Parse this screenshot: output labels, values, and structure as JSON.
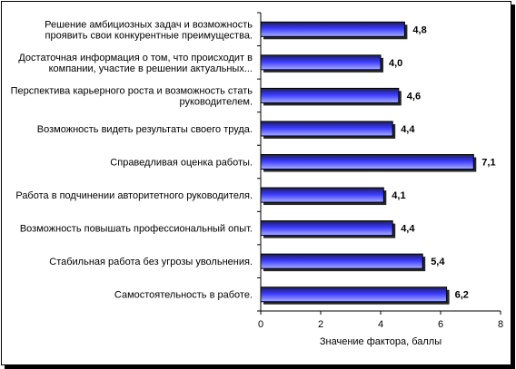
{
  "chart_data": {
    "type": "bar",
    "orientation": "horizontal",
    "categories": [
      [
        "Решение амбициозных задач и возможность",
        "проявить свои конкурентные преимущества."
      ],
      [
        "Достаточная информация о том, что происходит в",
        "компании, участие в решении актуальных..."
      ],
      [
        "Перспектива карьерного роста и возможность стать",
        "руководителем."
      ],
      [
        "Возможность видеть результаты своего труда."
      ],
      [
        "Справедливая оценка работы."
      ],
      [
        "Работа в подчинении авторитетного руководителя."
      ],
      [
        "Возможность повышать профессиональный опыт."
      ],
      [
        "Стабильная работа без угрозы увольнения."
      ],
      [
        "Самостоятельность в работе."
      ]
    ],
    "values": [
      4.8,
      4.0,
      4.6,
      4.4,
      7.1,
      4.1,
      4.4,
      5.4,
      6.2
    ],
    "value_labels": [
      "4,8",
      "4,0",
      "4,6",
      "4,4",
      "7,1",
      "4,1",
      "4,4",
      "5,4",
      "6,2"
    ],
    "xlabel": "Значение фактора, баллы",
    "xlim": [
      0,
      8
    ],
    "xticks": [
      0,
      2,
      4,
      6,
      8
    ],
    "grid": false,
    "legend": "none",
    "bar_color_dark": "#1a1a66",
    "bar_color_mid": "#3a3aff",
    "bar_color_light": "#aab0ff"
  }
}
